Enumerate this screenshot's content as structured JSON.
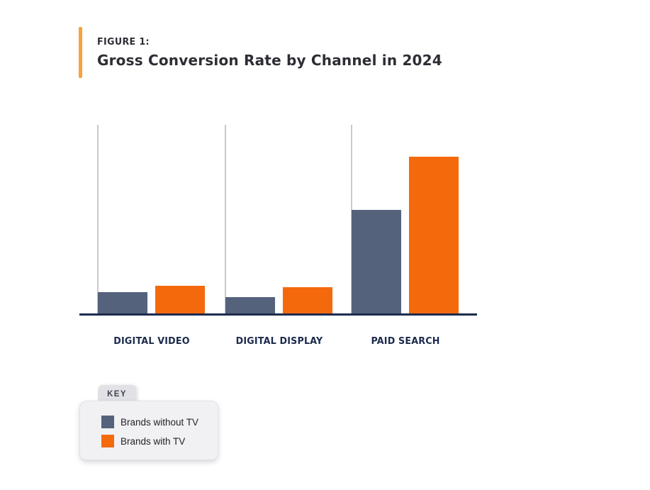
{
  "figure": {
    "eyebrow": "Figure 1:",
    "title": "Gross Conversion Rate by Channel in 2024"
  },
  "legend": {
    "tab_label": "KEY",
    "items": [
      {
        "label": "Brands without TV",
        "color": "#54627c"
      },
      {
        "label": "Brands with TV",
        "color": "#f5690d"
      }
    ]
  },
  "chart_data": {
    "type": "bar",
    "title": "Gross Conversion Rate by Channel in 2024",
    "categories": [
      "DIGITAL VIDEO",
      "DIGITAL DISPLAY",
      "PAID SEARCH"
    ],
    "series": [
      {
        "name": "Brands without TV",
        "color": "#54627c",
        "values": [
          11.6,
          8.9,
          55.0
        ]
      },
      {
        "name": "Brands with TV",
        "color": "#f5690d",
        "values": [
          14.9,
          14.2,
          83.1
        ]
      }
    ],
    "xlabel": "",
    "ylabel": "",
    "ylim": [
      0,
      100
    ],
    "y_axis": "unlabeled (values are relative heights, % of plot height)",
    "grid": "vertical gridline at left edge of each category group",
    "legend_position": "bottom-left tabbed key box"
  },
  "colors": {
    "accent_bar": "#f9a13b",
    "slate_series": "#54627c",
    "orange_series": "#f5690d",
    "axis_navy": "#1e2b4d",
    "title_charcoal": "#2d2d35",
    "gridline_gray": "#c9c9d2"
  }
}
